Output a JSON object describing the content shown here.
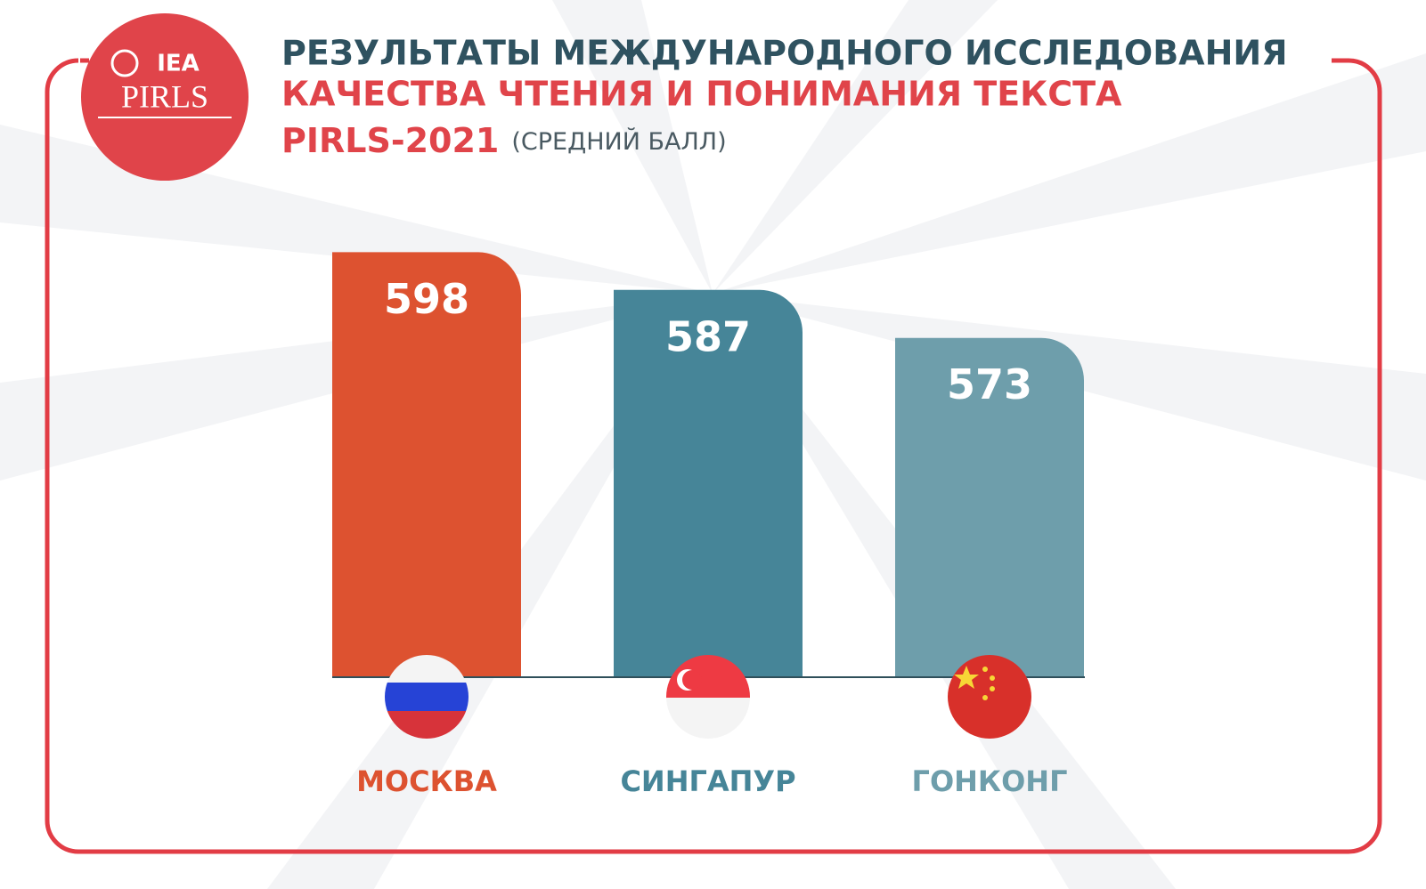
{
  "logo": {
    "top": "IEA",
    "bottom": "PIRLS"
  },
  "chart_data": {
    "type": "bar",
    "title": [
      "РЕЗУЛЬТАТЫ МЕЖДУНАРОДНОГО ИССЛЕДОВАНИЯ",
      "КАЧЕСТВА ЧТЕНИЯ И ПОНИМАНИЯ ТЕКСТА"
    ],
    "title_tail": "PIRLS-2021",
    "subtitle": "(СРЕДНИЙ БАЛЛ)",
    "categories": [
      "МОСКВА",
      "СИНГАПУР",
      "ГОНКОНГ"
    ],
    "values": [
      598,
      587,
      573
    ],
    "colors": [
      "#dd5230",
      "#468598",
      "#6e9eab"
    ],
    "ylim": [
      474,
      602
    ]
  }
}
